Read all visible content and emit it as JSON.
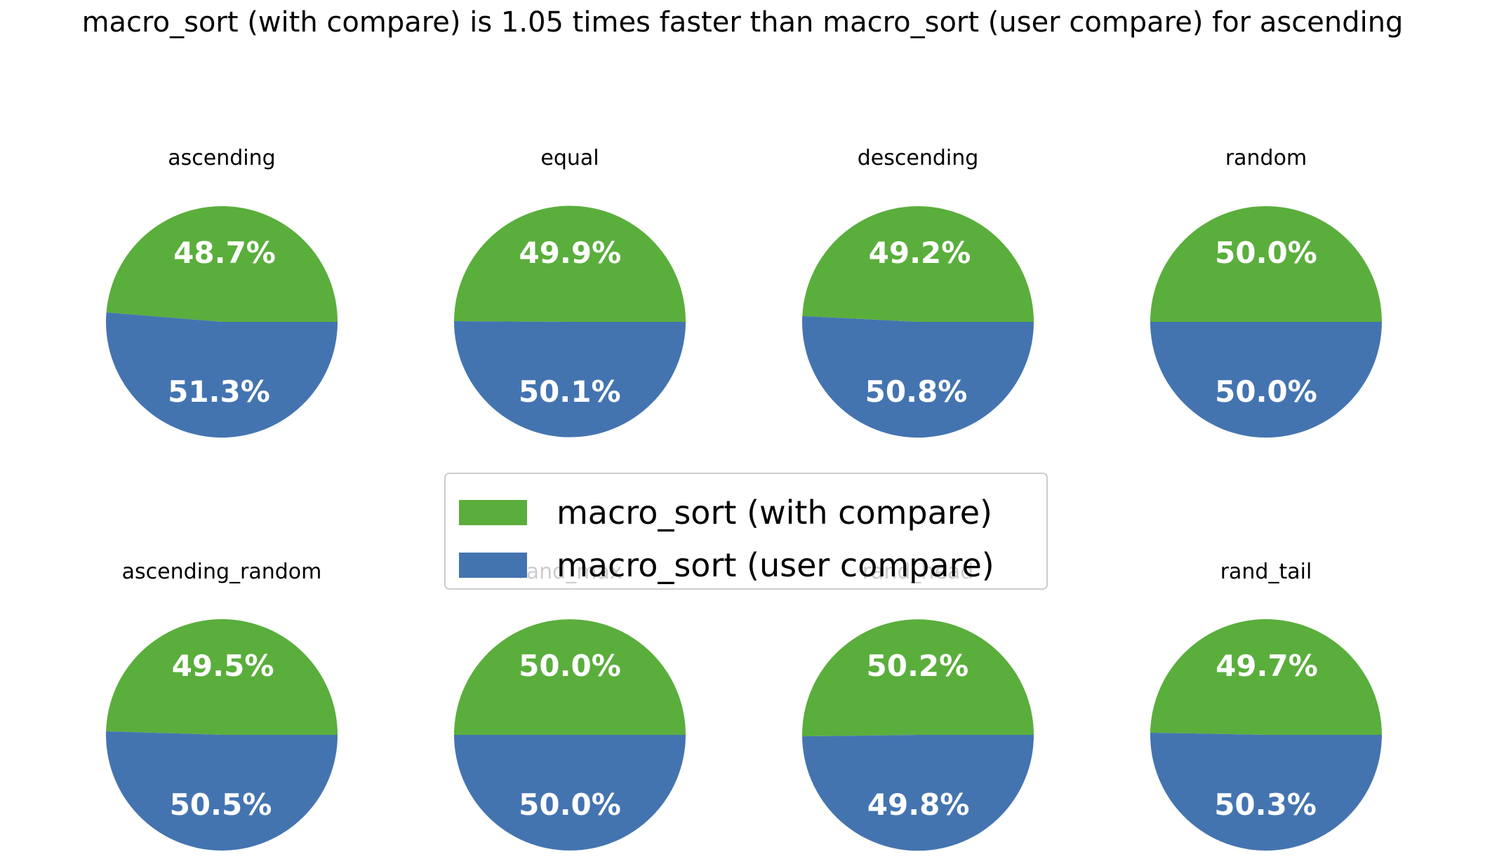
{
  "chart_data": {
    "type": "pie",
    "title": "macro_sort (with compare) is 1.05 times faster than macro_sort (user compare) for ascending",
    "series_names": [
      "macro_sort (with compare)",
      "macro_sort (user compare)"
    ],
    "colors": [
      "#5aae3c",
      "#4474b0"
    ],
    "legend": {
      "placement": "center",
      "entries": [
        "macro_sort (with compare)",
        "macro_sort (user compare)"
      ]
    },
    "subplots": [
      {
        "title": "ascending",
        "values": [
          48.7,
          51.3
        ],
        "labels": [
          "48.7%",
          "51.3%"
        ]
      },
      {
        "title": "equal",
        "values": [
          49.9,
          50.1
        ],
        "labels": [
          "49.9%",
          "50.1%"
        ]
      },
      {
        "title": "descending",
        "values": [
          49.2,
          50.8
        ],
        "labels": [
          "49.2%",
          "50.8%"
        ]
      },
      {
        "title": "random",
        "values": [
          50.0,
          50.0
        ],
        "labels": [
          "50.0%",
          "50.0%"
        ]
      },
      {
        "title": "ascending_random",
        "values": [
          49.5,
          50.5
        ],
        "labels": [
          "49.5%",
          "50.5%"
        ]
      },
      {
        "title": "rand_max",
        "values": [
          50.0,
          50.0
        ],
        "labels": [
          "50.0%",
          "50.0%"
        ]
      },
      {
        "title": "rand_head",
        "values": [
          50.2,
          49.8
        ],
        "labels": [
          "50.2%",
          "49.8%"
        ]
      },
      {
        "title": "rand_tail",
        "values": [
          49.7,
          50.3
        ],
        "labels": [
          "49.7%",
          "50.3%"
        ]
      }
    ]
  }
}
